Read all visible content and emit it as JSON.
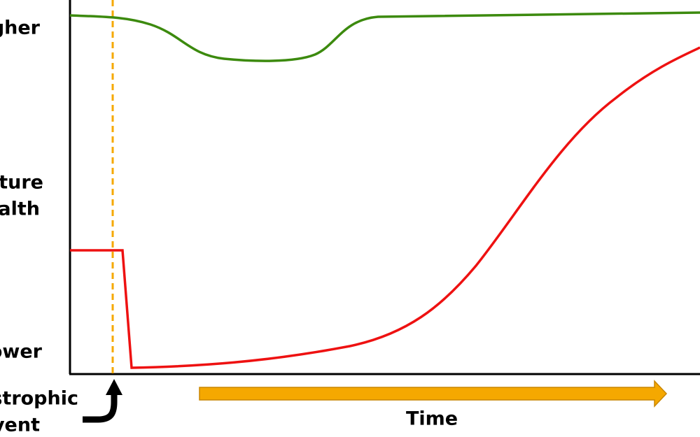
{
  "labels": {
    "higher": "gher",
    "pasture_health": [
      "sture",
      "alth"
    ],
    "lower": "ower",
    "event": [
      "strophic",
      "vent"
    ],
    "time": "Time"
  }
}
